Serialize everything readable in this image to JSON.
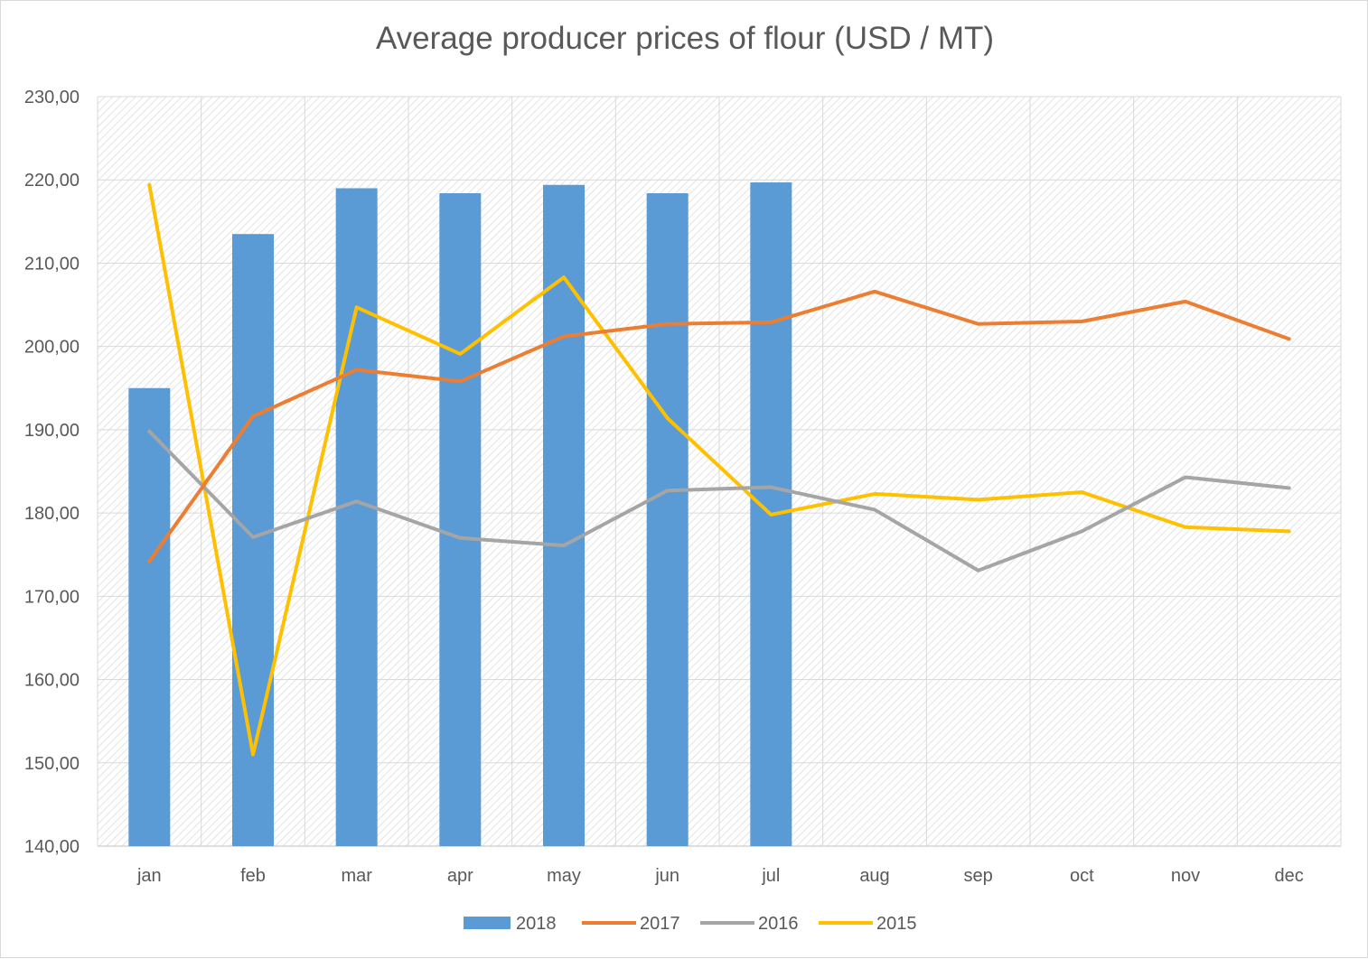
{
  "chart_data": {
    "type": "bar",
    "title": "Average producer prices of flour (USD / MT)",
    "xlabel": "",
    "ylabel": "",
    "categories": [
      "jan",
      "feb",
      "mar",
      "apr",
      "may",
      "jun",
      "jul",
      "aug",
      "sep",
      "oct",
      "nov",
      "dec"
    ],
    "ylim": [
      140,
      230
    ],
    "yticks": [
      140,
      150,
      160,
      170,
      180,
      190,
      200,
      210,
      220,
      230
    ],
    "ytick_labels": [
      "140,00",
      "150,00",
      "160,00",
      "170,00",
      "180,00",
      "190,00",
      "200,00",
      "210,00",
      "220,00",
      "230,00"
    ],
    "grid": true,
    "legend_position": "bottom",
    "series": [
      {
        "name": "2018",
        "type": "bar",
        "color": "#5B9BD5",
        "values": [
          195.0,
          213.5,
          219.0,
          218.4,
          219.4,
          218.4,
          219.7,
          null,
          null,
          null,
          null,
          null
        ]
      },
      {
        "name": "2017",
        "type": "line",
        "color": "#ED7D31",
        "values": [
          174.2,
          191.6,
          197.2,
          195.8,
          201.2,
          202.7,
          202.9,
          206.6,
          202.7,
          203.0,
          205.4,
          200.9
        ]
      },
      {
        "name": "2016",
        "type": "line",
        "color": "#A5A5A5",
        "values": [
          189.8,
          177.1,
          181.4,
          177.0,
          176.1,
          182.7,
          183.1,
          180.4,
          173.1,
          177.8,
          184.3,
          183.0
        ]
      },
      {
        "name": "2015",
        "type": "line",
        "color": "#FFC000",
        "values": [
          219.4,
          151.0,
          204.7,
          199.1,
          208.3,
          191.4,
          179.8,
          182.3,
          181.6,
          182.5,
          178.3,
          177.8
        ]
      }
    ]
  }
}
